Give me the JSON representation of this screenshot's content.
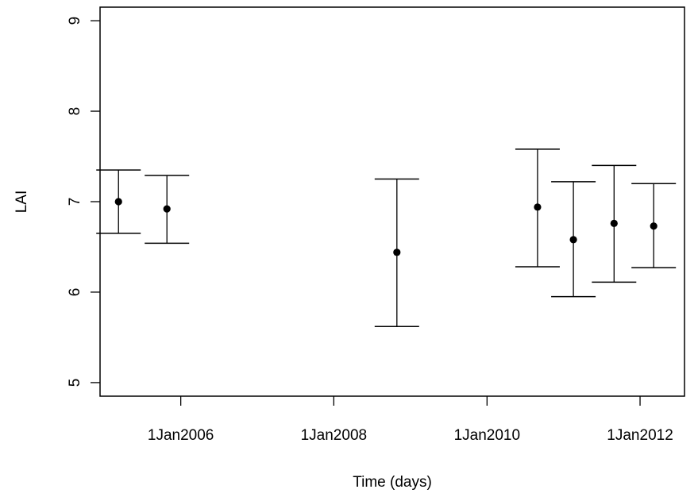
{
  "chart_data": {
    "type": "scatter",
    "title": "",
    "xlabel": "Time (days)",
    "ylabel": "LAI",
    "x_type": "date",
    "xlim": [
      "2004-12-12",
      "2012-07-31"
    ],
    "ylim": [
      4.85,
      9.15
    ],
    "x_ticks": [
      {
        "date": "2006-01-01",
        "label": "1Jan2006"
      },
      {
        "date": "2008-01-01",
        "label": "1Jan2008"
      },
      {
        "date": "2010-01-01",
        "label": "1Jan2010"
      },
      {
        "date": "2012-01-01",
        "label": "1Jan2012"
      }
    ],
    "y_ticks": [
      5,
      6,
      7,
      8,
      9
    ],
    "grid": false,
    "legend": "none",
    "color": "#000000",
    "series": [
      {
        "values": [
          {
            "x": "2005-03-10",
            "y": 7.0,
            "lower": 6.65,
            "upper": 7.35
          },
          {
            "x": "2005-10-27",
            "y": 6.92,
            "lower": 6.54,
            "upper": 7.29
          },
          {
            "x": "2008-10-28",
            "y": 6.44,
            "lower": 5.62,
            "upper": 7.25
          },
          {
            "x": "2010-08-30",
            "y": 6.94,
            "lower": 6.28,
            "upper": 7.58
          },
          {
            "x": "2011-02-17",
            "y": 6.58,
            "lower": 5.95,
            "upper": 7.22
          },
          {
            "x": "2011-08-30",
            "y": 6.76,
            "lower": 6.11,
            "upper": 7.4
          },
          {
            "x": "2012-03-06",
            "y": 6.73,
            "lower": 6.27,
            "upper": 7.2
          }
        ]
      }
    ]
  }
}
